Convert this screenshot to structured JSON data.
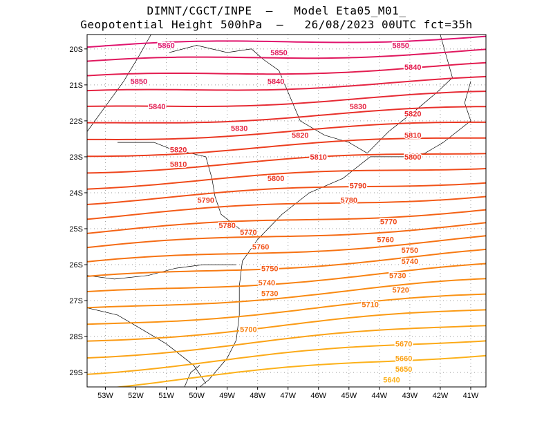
{
  "title": {
    "line1": "DIMNT/CGCT/INPE  –   Model Eta05_M01_",
    "line2": "Geopotential Height 500hPa  –   26/08/2023 00UTC fct=35h"
  },
  "axes": {
    "lon_ticks": [
      "53W",
      "52W",
      "51W",
      "50W",
      "49W",
      "48W",
      "47W",
      "46W",
      "45W",
      "44W",
      "43W",
      "42W",
      "41W"
    ],
    "lat_ticks": [
      "20S",
      "21S",
      "22S",
      "23S",
      "24S",
      "25S",
      "26S",
      "27S",
      "28S",
      "29S"
    ]
  },
  "map_extent": {
    "lon_min": -53.6,
    "lon_max": -40.5,
    "lat_min": -29.4,
    "lat_max": -19.6
  },
  "contour_colors": {
    "5860": "#e0146e",
    "5850": "#e0185e",
    "5840": "#e31d50",
    "5830": "#e52442",
    "5820": "#e62a34",
    "5810": "#e8302a",
    "5800": "#ea3722",
    "5790": "#ec3d1e",
    "5780": "#ee441c",
    "5770": "#f04b1a",
    "5760": "#f15218",
    "5750": "#f35a17",
    "5740": "#f46215",
    "5730": "#f56a14",
    "5720": "#f67212",
    "5710": "#f77a12",
    "5700": "#f88212",
    "5690": "#f98a12",
    "5680": "#fa9213",
    "5670": "#fb9a14",
    "5660": "#fba216",
    "5650": "#fcaa18",
    "5640": "#fcb11a"
  },
  "contour_labels": [
    {
      "text": "5860",
      "level": "5860",
      "lon": -51.0,
      "lat": -19.9
    },
    {
      "text": "5850",
      "level": "5850",
      "lon": -47.3,
      "lat": -20.1
    },
    {
      "text": "5850",
      "level": "5850",
      "lon": -43.3,
      "lat": -19.9
    },
    {
      "text": "5850",
      "level": "5850",
      "lon": -51.9,
      "lat": -20.9
    },
    {
      "text": "5840",
      "level": "5840",
      "lon": -47.4,
      "lat": -20.9
    },
    {
      "text": "5840",
      "level": "5840",
      "lon": -42.9,
      "lat": -20.5
    },
    {
      "text": "5840",
      "level": "5840",
      "lon": -51.3,
      "lat": -21.6
    },
    {
      "text": "5830",
      "level": "5830",
      "lon": -44.7,
      "lat": -21.6
    },
    {
      "text": "5830",
      "level": "5830",
      "lon": -48.6,
      "lat": -22.2
    },
    {
      "text": "5820",
      "level": "5820",
      "lon": -42.9,
      "lat": -21.8
    },
    {
      "text": "5820",
      "level": "5820",
      "lon": -46.6,
      "lat": -22.4
    },
    {
      "text": "5820",
      "level": "5820",
      "lon": -50.6,
      "lat": -22.8
    },
    {
      "text": "5810",
      "level": "5810",
      "lon": -42.9,
      "lat": -22.4
    },
    {
      "text": "5810",
      "level": "5810",
      "lon": -46.0,
      "lat": -23.0
    },
    {
      "text": "5810",
      "level": "5810",
      "lon": -50.6,
      "lat": -23.2
    },
    {
      "text": "5800",
      "level": "5800",
      "lon": -42.9,
      "lat": -23.0
    },
    {
      "text": "5800",
      "level": "5800",
      "lon": -47.4,
      "lat": -23.6
    },
    {
      "text": "5790",
      "level": "5790",
      "lon": -44.7,
      "lat": -23.8
    },
    {
      "text": "5790",
      "level": "5790",
      "lon": -49.7,
      "lat": -24.2
    },
    {
      "text": "5780",
      "level": "5780",
      "lon": -45.0,
      "lat": -24.2
    },
    {
      "text": "5780",
      "level": "5780",
      "lon": -49.0,
      "lat": -24.9
    },
    {
      "text": "5770",
      "level": "5770",
      "lon": -43.7,
      "lat": -24.8
    },
    {
      "text": "5770",
      "level": "5770",
      "lon": -48.3,
      "lat": -25.1
    },
    {
      "text": "5760",
      "level": "5760",
      "lon": -43.8,
      "lat": -25.3
    },
    {
      "text": "5760",
      "level": "5760",
      "lon": -47.9,
      "lat": -25.5
    },
    {
      "text": "5750",
      "level": "5750",
      "lon": -43.0,
      "lat": -25.6
    },
    {
      "text": "5750",
      "level": "5750",
      "lon": -47.6,
      "lat": -26.1
    },
    {
      "text": "5740",
      "level": "5740",
      "lon": -43.0,
      "lat": -25.9
    },
    {
      "text": "5740",
      "level": "5740",
      "lon": -47.7,
      "lat": -26.5
    },
    {
      "text": "5730",
      "level": "5730",
      "lon": -43.4,
      "lat": -26.3
    },
    {
      "text": "5730",
      "level": "5730",
      "lon": -47.6,
      "lat": -26.8
    },
    {
      "text": "5720",
      "level": "5720",
      "lon": -43.3,
      "lat": -26.7
    },
    {
      "text": "5710",
      "level": "5710",
      "lon": -44.3,
      "lat": -27.1
    },
    {
      "text": "5700",
      "level": "5700",
      "lon": -48.3,
      "lat": -27.8
    },
    {
      "text": "5670",
      "level": "5670",
      "lon": -43.2,
      "lat": -28.2
    },
    {
      "text": "5660",
      "level": "5660",
      "lon": -43.2,
      "lat": -28.6
    },
    {
      "text": "5650",
      "level": "5650",
      "lon": -43.2,
      "lat": -28.9
    },
    {
      "text": "5640",
      "level": "5640",
      "lon": -43.6,
      "lat": -29.2
    }
  ]
}
